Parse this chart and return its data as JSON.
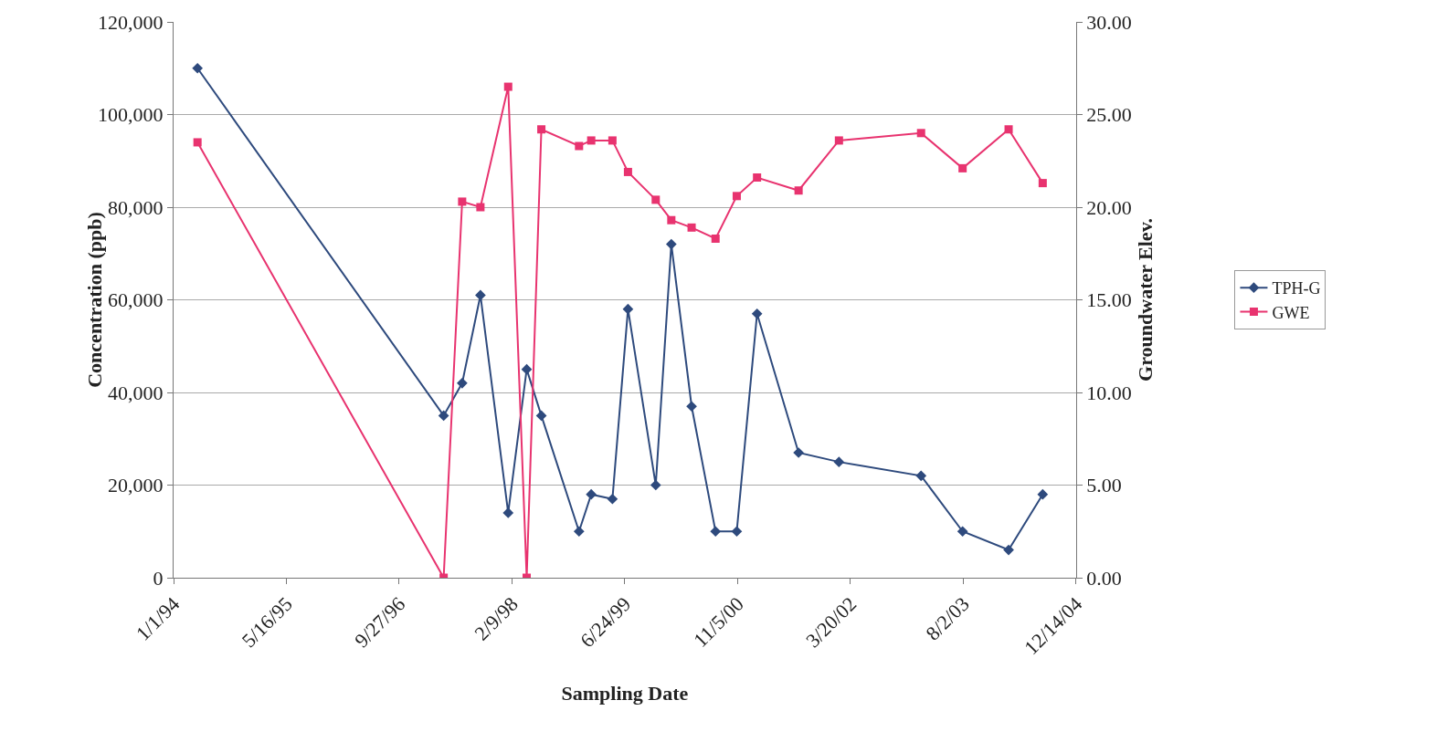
{
  "chart_data": {
    "type": "line",
    "xlabel": "Sampling Date",
    "ylabel": "Concentration (ppb)",
    "y2label": "Groundwater Elev.",
    "x": [
      "1994-04-17",
      "1997-04-12",
      "1997-07-03",
      "1997-09-22",
      "1998-01-23",
      "1998-04-15",
      "1998-06-19",
      "1998-12-03",
      "1999-01-26",
      "1999-04-30",
      "1999-07-08",
      "1999-11-08",
      "2000-01-16",
      "2000-04-15",
      "2000-07-30",
      "2000-11-01",
      "2001-01-30",
      "2001-08-02",
      "2002-01-28",
      "2003-01-27",
      "2003-07-30",
      "2004-02-19",
      "2004-07-19"
    ],
    "series": [
      {
        "name": "TPH-G",
        "color": "#2e4a7d",
        "marker": "diamond",
        "values": [
          110000,
          35000,
          42000,
          61000,
          14000,
          45000,
          35000,
          10000,
          18000,
          17000,
          58000,
          20000,
          72000,
          37000,
          10000,
          10000,
          57000,
          27000,
          25000,
          22000,
          10000,
          6000,
          18000
        ]
      },
      {
        "name": "GWE",
        "color": "#e8336f",
        "marker": "square",
        "axis": "y2",
        "values": [
          23.5,
          0,
          20.3,
          20.0,
          26.5,
          0,
          24.2,
          23.3,
          23.6,
          23.6,
          21.9,
          20.4,
          19.3,
          18.9,
          18.3,
          20.6,
          21.6,
          20.9,
          23.6,
          24.0,
          22.1,
          24.2,
          21.3
        ]
      }
    ],
    "xlim": [
      "1994-01-01",
      "2004-12-14"
    ],
    "xticks": [
      {
        "value": "1994-01-01",
        "label": "1/1/94"
      },
      {
        "value": "1995-05-16",
        "label": "5/16/95"
      },
      {
        "value": "1996-09-27",
        "label": "9/27/96"
      },
      {
        "value": "1998-02-09",
        "label": "2/9/98"
      },
      {
        "value": "1999-06-24",
        "label": "6/24/99"
      },
      {
        "value": "2000-11-05",
        "label": "11/5/00"
      },
      {
        "value": "2002-03-20",
        "label": "3/20/02"
      },
      {
        "value": "2003-08-02",
        "label": "8/2/03"
      },
      {
        "value": "2004-12-14",
        "label": "12/14/04"
      }
    ],
    "ylim": [
      0,
      120000
    ],
    "yticks": [
      {
        "value": 0,
        "label": "0"
      },
      {
        "value": 20000,
        "label": "20,000"
      },
      {
        "value": 40000,
        "label": "40,000"
      },
      {
        "value": 60000,
        "label": "60,000"
      },
      {
        "value": 80000,
        "label": "80,000"
      },
      {
        "value": 100000,
        "label": "100,000"
      },
      {
        "value": 120000,
        "label": "120,000"
      }
    ],
    "y2lim": [
      0,
      30
    ],
    "y2ticks": [
      {
        "value": 0,
        "label": "0.00"
      },
      {
        "value": 5,
        "label": "5.00"
      },
      {
        "value": 10,
        "label": "10.00"
      },
      {
        "value": 15,
        "label": "15.00"
      },
      {
        "value": 20,
        "label": "20.00"
      },
      {
        "value": 25,
        "label": "25.00"
      },
      {
        "value": 30,
        "label": "30.00"
      }
    ],
    "grid": "y",
    "legend": "right",
    "line_style": "solid"
  }
}
